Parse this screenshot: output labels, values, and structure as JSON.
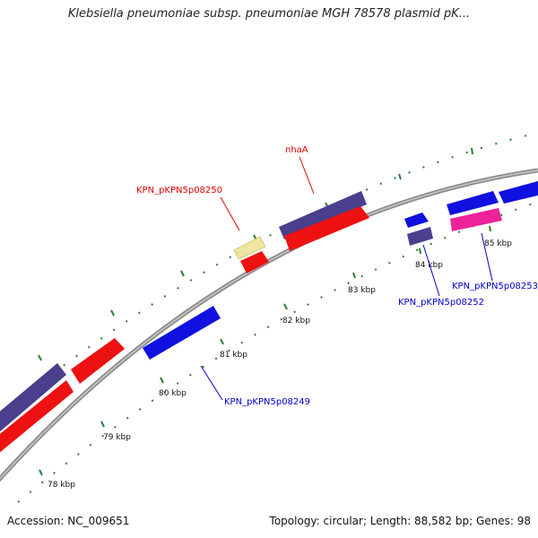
{
  "title": "Klebsiella pneumoniae subsp. pneumoniae MGH 78578 plasmid pK...",
  "footer": {
    "accession": "Accession: NC_009651",
    "summary": "Topology: circular; Length: 88,582 bp; Genes: 98"
  },
  "colors": {
    "backbone": "#8c8c8c",
    "tick": "#2e7d32",
    "gene_red": "#ee1111",
    "gene_blue": "#1010e0",
    "gene_purple": "#4a3f8c",
    "gene_yellow": "#eee6a0",
    "gene_pink": "#ee2299",
    "label_red": "#dd0000",
    "label_blue": "#0000cc"
  },
  "scale_labels": [
    "78 kbp",
    "79 kbp",
    "80 kbp",
    "81 kbp",
    "82 kbp",
    "83 kbp",
    "84 kbp",
    "85 kbp"
  ],
  "gene_labels": [
    {
      "text": "nhaA",
      "color": "red"
    },
    {
      "text": "KPN_pKPN5p08250",
      "color": "red"
    },
    {
      "text": "KPN_pKPN5p08249",
      "color": "blue"
    },
    {
      "text": "KPN_pKPN5p08252",
      "color": "blue"
    },
    {
      "text": "KPN_pKPN5p08253",
      "color": "blue"
    }
  ]
}
